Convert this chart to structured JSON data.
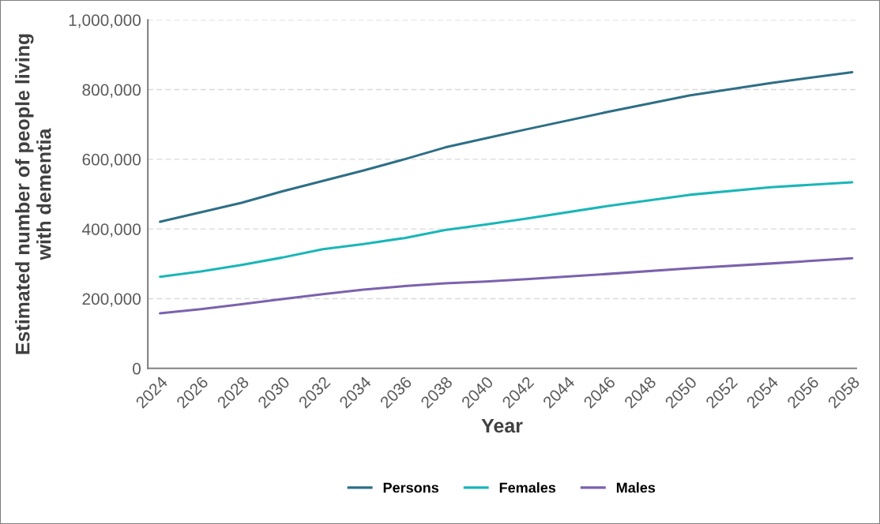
{
  "chart_data": {
    "type": "line",
    "xlabel": "Year",
    "ylabel": "Estimated number of people living\nwith dementia",
    "x": [
      2024,
      2026,
      2028,
      2030,
      2032,
      2034,
      2036,
      2038,
      2040,
      2042,
      2046,
      2050,
      2054,
      2058
    ],
    "series": [
      {
        "name": "Persons",
        "color": "#2e6f86",
        "values": [
          421000,
          448000,
          475000,
          508000,
          538000,
          568000,
          600000,
          634000,
          660000,
          686000,
          736000,
          783000,
          819000,
          850000
        ]
      },
      {
        "name": "Females",
        "color": "#1ab6b8",
        "values": [
          263000,
          278000,
          297000,
          318000,
          342000,
          357000,
          374000,
          397000,
          413000,
          430000,
          466000,
          498000,
          520000,
          534000
        ]
      },
      {
        "name": "Males",
        "color": "#7b62ad",
        "values": [
          158000,
          170000,
          184000,
          199000,
          213000,
          226000,
          236000,
          244000,
          249000,
          256000,
          271000,
          287000,
          301000,
          316000
        ]
      }
    ],
    "xlim": [
      2023.4,
      2058.2
    ],
    "xticks": [
      2024,
      2026,
      2028,
      2030,
      2032,
      2034,
      2036,
      2038,
      2040,
      2042,
      2044,
      2046,
      2048,
      2050,
      2052,
      2054,
      2056,
      2058
    ],
    "ylim": [
      0,
      1000000
    ],
    "yticks": [
      0,
      {
        "value": 200000,
        "label": "200,000"
      },
      {
        "value": 400000,
        "label": "400,000"
      },
      {
        "value": 600000,
        "label": "600,000"
      },
      {
        "value": 800000,
        "label": "800,000"
      },
      {
        "value": 1000000,
        "label": "1,000,000"
      }
    ],
    "grid": "y",
    "legend": "bottom",
    "marker": "none",
    "line_style": "solid"
  }
}
